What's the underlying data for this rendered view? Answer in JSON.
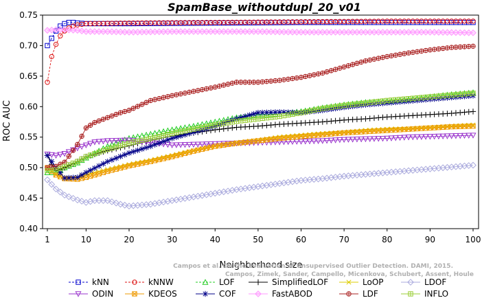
{
  "chart_data": {
    "type": "line",
    "title": "SpamBase_withoutdupl_20_v01",
    "xlabel": "Neighborhood size",
    "ylabel": "ROC AUC",
    "xlim": [
      1,
      100
    ],
    "ylim": [
      0.4,
      0.75
    ],
    "xticks": [
      1,
      10,
      20,
      30,
      40,
      50,
      60,
      70,
      80,
      90,
      100
    ],
    "yticks": [
      0.4,
      0.45,
      0.5,
      0.55,
      0.6,
      0.65,
      0.7,
      0.75
    ],
    "ytick_labels": [
      "0.40",
      "0.45",
      "0.50",
      "0.55",
      "0.60",
      "0.65",
      "0.70",
      "0.75"
    ],
    "grid": false,
    "legend_placement": "bottom",
    "watermark": [
      "Campos et al. On the Evaluation of Unsupervised Outlier Detection. DAMI, 2015.",
      "Campos, Zimek, Sander, Campello, Micenkova, Schubert, Assent, Houle"
    ],
    "series": [
      {
        "name": "kNN",
        "color": "#0000cc",
        "marker": "square",
        "dashed": true,
        "points": [
          [
            1,
            0.7
          ],
          [
            2,
            0.712
          ],
          [
            3,
            0.724
          ],
          [
            4,
            0.732
          ],
          [
            5,
            0.736
          ],
          [
            6,
            0.738
          ],
          [
            7,
            0.738
          ],
          [
            8,
            0.737
          ],
          [
            10,
            0.736
          ],
          [
            20,
            0.736
          ],
          [
            40,
            0.737
          ],
          [
            60,
            0.738
          ],
          [
            80,
            0.738
          ],
          [
            100,
            0.738
          ]
        ]
      },
      {
        "name": "kNNW",
        "color": "#dd1111",
        "marker": "circle",
        "dashed": true,
        "points": [
          [
            1,
            0.64
          ],
          [
            2,
            0.682
          ],
          [
            3,
            0.702
          ],
          [
            4,
            0.716
          ],
          [
            5,
            0.724
          ],
          [
            6,
            0.729
          ],
          [
            7,
            0.732
          ],
          [
            8,
            0.734
          ],
          [
            10,
            0.736
          ],
          [
            20,
            0.737
          ],
          [
            40,
            0.738
          ],
          [
            60,
            0.739
          ],
          [
            80,
            0.74
          ],
          [
            100,
            0.74
          ]
        ]
      },
      {
        "name": "LOF",
        "color": "#22cc22",
        "marker": "triangle",
        "dashed": true,
        "points": [
          [
            1,
            0.492
          ],
          [
            3,
            0.492
          ],
          [
            5,
            0.5
          ],
          [
            8,
            0.508
          ],
          [
            10,
            0.516
          ],
          [
            15,
            0.535
          ],
          [
            20,
            0.548
          ],
          [
            25,
            0.555
          ],
          [
            30,
            0.562
          ],
          [
            35,
            0.568
          ],
          [
            40,
            0.575
          ],
          [
            45,
            0.582
          ],
          [
            50,
            0.586
          ],
          [
            55,
            0.588
          ],
          [
            60,
            0.592
          ],
          [
            65,
            0.598
          ],
          [
            70,
            0.603
          ],
          [
            75,
            0.607
          ],
          [
            80,
            0.609
          ],
          [
            85,
            0.612
          ],
          [
            90,
            0.616
          ],
          [
            95,
            0.62
          ],
          [
            100,
            0.623
          ]
        ]
      },
      {
        "name": "SimplifiedLOF",
        "color": "#000000",
        "marker": "plus",
        "dashed": false,
        "points": [
          [
            1,
            0.52
          ],
          [
            2,
            0.505
          ],
          [
            3,
            0.495
          ],
          [
            5,
            0.5
          ],
          [
            8,
            0.51
          ],
          [
            10,
            0.518
          ],
          [
            15,
            0.528
          ],
          [
            20,
            0.536
          ],
          [
            25,
            0.545
          ],
          [
            30,
            0.552
          ],
          [
            35,
            0.557
          ],
          [
            40,
            0.562
          ],
          [
            45,
            0.566
          ],
          [
            50,
            0.568
          ],
          [
            55,
            0.571
          ],
          [
            60,
            0.573
          ],
          [
            65,
            0.575
          ],
          [
            70,
            0.578
          ],
          [
            75,
            0.58
          ],
          [
            80,
            0.583
          ],
          [
            85,
            0.585
          ],
          [
            90,
            0.587
          ],
          [
            95,
            0.589
          ],
          [
            100,
            0.592
          ]
        ]
      },
      {
        "name": "LoOP",
        "color": "#ddcc00",
        "marker": "x",
        "dashed": false,
        "points": [
          [
            1,
            0.5
          ],
          [
            3,
            0.49
          ],
          [
            5,
            0.482
          ],
          [
            8,
            0.484
          ],
          [
            10,
            0.488
          ],
          [
            15,
            0.497
          ],
          [
            20,
            0.505
          ],
          [
            25,
            0.512
          ],
          [
            30,
            0.52
          ],
          [
            35,
            0.528
          ],
          [
            40,
            0.536
          ],
          [
            45,
            0.541
          ],
          [
            50,
            0.545
          ],
          [
            55,
            0.55
          ],
          [
            60,
            0.553
          ],
          [
            65,
            0.556
          ],
          [
            70,
            0.558
          ],
          [
            75,
            0.561
          ],
          [
            80,
            0.563
          ],
          [
            85,
            0.564
          ],
          [
            90,
            0.566
          ],
          [
            95,
            0.568
          ],
          [
            100,
            0.57
          ]
        ]
      },
      {
        "name": "LDOF",
        "color": "#aaaadd",
        "marker": "diamond",
        "dashed": false,
        "points": [
          [
            1,
            0.48
          ],
          [
            3,
            0.465
          ],
          [
            5,
            0.455
          ],
          [
            8,
            0.447
          ],
          [
            10,
            0.443
          ],
          [
            12,
            0.446
          ],
          [
            15,
            0.446
          ],
          [
            18,
            0.44
          ],
          [
            20,
            0.437
          ],
          [
            25,
            0.44
          ],
          [
            30,
            0.446
          ],
          [
            35,
            0.452
          ],
          [
            40,
            0.458
          ],
          [
            45,
            0.464
          ],
          [
            50,
            0.469
          ],
          [
            55,
            0.474
          ],
          [
            60,
            0.479
          ],
          [
            65,
            0.482
          ],
          [
            70,
            0.486
          ],
          [
            75,
            0.489
          ],
          [
            80,
            0.492
          ],
          [
            85,
            0.495
          ],
          [
            90,
            0.498
          ],
          [
            95,
            0.501
          ],
          [
            100,
            0.504
          ]
        ]
      },
      {
        "name": "ODIN",
        "color": "#9933cc",
        "marker": "down-triangle",
        "dashed": false,
        "points": [
          [
            1,
            0.522
          ],
          [
            3,
            0.52
          ],
          [
            5,
            0.523
          ],
          [
            8,
            0.532
          ],
          [
            10,
            0.537
          ],
          [
            12,
            0.542
          ],
          [
            15,
            0.544
          ],
          [
            20,
            0.545
          ],
          [
            25,
            0.541
          ],
          [
            30,
            0.537
          ],
          [
            35,
            0.538
          ],
          [
            40,
            0.539
          ],
          [
            45,
            0.54
          ],
          [
            50,
            0.541
          ],
          [
            55,
            0.542
          ],
          [
            60,
            0.543
          ],
          [
            65,
            0.544
          ],
          [
            70,
            0.546
          ],
          [
            75,
            0.547
          ],
          [
            80,
            0.548
          ],
          [
            85,
            0.55
          ],
          [
            90,
            0.551
          ],
          [
            95,
            0.552
          ],
          [
            100,
            0.553
          ]
        ]
      },
      {
        "name": "KDEOS",
        "color": "#ee9900",
        "marker": "square-x",
        "dashed": false,
        "points": [
          [
            1,
            0.5
          ],
          [
            3,
            0.488
          ],
          [
            5,
            0.482
          ],
          [
            8,
            0.481
          ],
          [
            10,
            0.484
          ],
          [
            15,
            0.494
          ],
          [
            20,
            0.503
          ],
          [
            25,
            0.51
          ],
          [
            30,
            0.518
          ],
          [
            35,
            0.527
          ],
          [
            40,
            0.535
          ],
          [
            45,
            0.54
          ],
          [
            50,
            0.544
          ],
          [
            55,
            0.548
          ],
          [
            60,
            0.551
          ],
          [
            65,
            0.554
          ],
          [
            70,
            0.557
          ],
          [
            75,
            0.559
          ],
          [
            80,
            0.561
          ],
          [
            85,
            0.563
          ],
          [
            90,
            0.565
          ],
          [
            95,
            0.567
          ],
          [
            100,
            0.568
          ]
        ]
      },
      {
        "name": "COF",
        "color": "#000088",
        "marker": "star",
        "dashed": false,
        "points": [
          [
            1,
            0.52
          ],
          [
            3,
            0.5
          ],
          [
            5,
            0.483
          ],
          [
            8,
            0.484
          ],
          [
            10,
            0.492
          ],
          [
            15,
            0.51
          ],
          [
            20,
            0.524
          ],
          [
            25,
            0.535
          ],
          [
            30,
            0.548
          ],
          [
            35,
            0.558
          ],
          [
            40,
            0.568
          ],
          [
            45,
            0.58
          ],
          [
            50,
            0.59
          ],
          [
            55,
            0.591
          ],
          [
            60,
            0.59
          ],
          [
            65,
            0.594
          ],
          [
            70,
            0.599
          ],
          [
            75,
            0.603
          ],
          [
            80,
            0.606
          ],
          [
            85,
            0.609
          ],
          [
            90,
            0.612
          ],
          [
            95,
            0.615
          ],
          [
            100,
            0.618
          ]
        ]
      },
      {
        "name": "FastABOD",
        "color": "#ff99ff",
        "marker": "diamond-filled",
        "dashed": false,
        "points": [
          [
            1,
            0.725
          ],
          [
            3,
            0.726
          ],
          [
            5,
            0.726
          ],
          [
            8,
            0.725
          ],
          [
            10,
            0.723
          ],
          [
            15,
            0.723
          ],
          [
            20,
            0.722
          ],
          [
            30,
            0.723
          ],
          [
            40,
            0.723
          ],
          [
            50,
            0.723
          ],
          [
            60,
            0.722
          ],
          [
            70,
            0.722
          ],
          [
            80,
            0.722
          ],
          [
            90,
            0.722
          ],
          [
            100,
            0.721
          ]
        ]
      },
      {
        "name": "LDF",
        "color": "#aa2222",
        "marker": "circle-plus",
        "dashed": false,
        "points": [
          [
            1,
            0.5
          ],
          [
            3,
            0.502
          ],
          [
            5,
            0.509
          ],
          [
            8,
            0.538
          ],
          [
            10,
            0.565
          ],
          [
            12,
            0.574
          ],
          [
            15,
            0.582
          ],
          [
            18,
            0.59
          ],
          [
            20,
            0.594
          ],
          [
            25,
            0.61
          ],
          [
            30,
            0.618
          ],
          [
            35,
            0.625
          ],
          [
            40,
            0.632
          ],
          [
            45,
            0.64
          ],
          [
            50,
            0.64
          ],
          [
            55,
            0.643
          ],
          [
            60,
            0.648
          ],
          [
            65,
            0.655
          ],
          [
            70,
            0.665
          ],
          [
            75,
            0.675
          ],
          [
            80,
            0.682
          ],
          [
            85,
            0.688
          ],
          [
            90,
            0.693
          ],
          [
            95,
            0.697
          ],
          [
            100,
            0.699
          ]
        ]
      },
      {
        "name": "INFLO",
        "color": "#99cc33",
        "marker": "square-cross",
        "dashed": false,
        "points": [
          [
            1,
            0.495
          ],
          [
            3,
            0.496
          ],
          [
            5,
            0.502
          ],
          [
            8,
            0.51
          ],
          [
            10,
            0.518
          ],
          [
            15,
            0.53
          ],
          [
            20,
            0.54
          ],
          [
            25,
            0.548
          ],
          [
            30,
            0.556
          ],
          [
            35,
            0.563
          ],
          [
            40,
            0.57
          ],
          [
            45,
            0.576
          ],
          [
            50,
            0.58
          ],
          [
            55,
            0.584
          ],
          [
            60,
            0.59
          ],
          [
            65,
            0.597
          ],
          [
            70,
            0.602
          ],
          [
            75,
            0.606
          ],
          [
            80,
            0.61
          ],
          [
            85,
            0.613
          ],
          [
            90,
            0.616
          ],
          [
            95,
            0.619
          ],
          [
            100,
            0.622
          ]
        ]
      }
    ],
    "legend_rows": [
      [
        "kNN",
        "kNNW",
        "LOF",
        "SimplifiedLOF",
        "LoOP",
        "LDOF"
      ],
      [
        "ODIN",
        "KDEOS",
        "COF",
        "FastABOD",
        "LDF",
        "INFLO"
      ]
    ]
  }
}
